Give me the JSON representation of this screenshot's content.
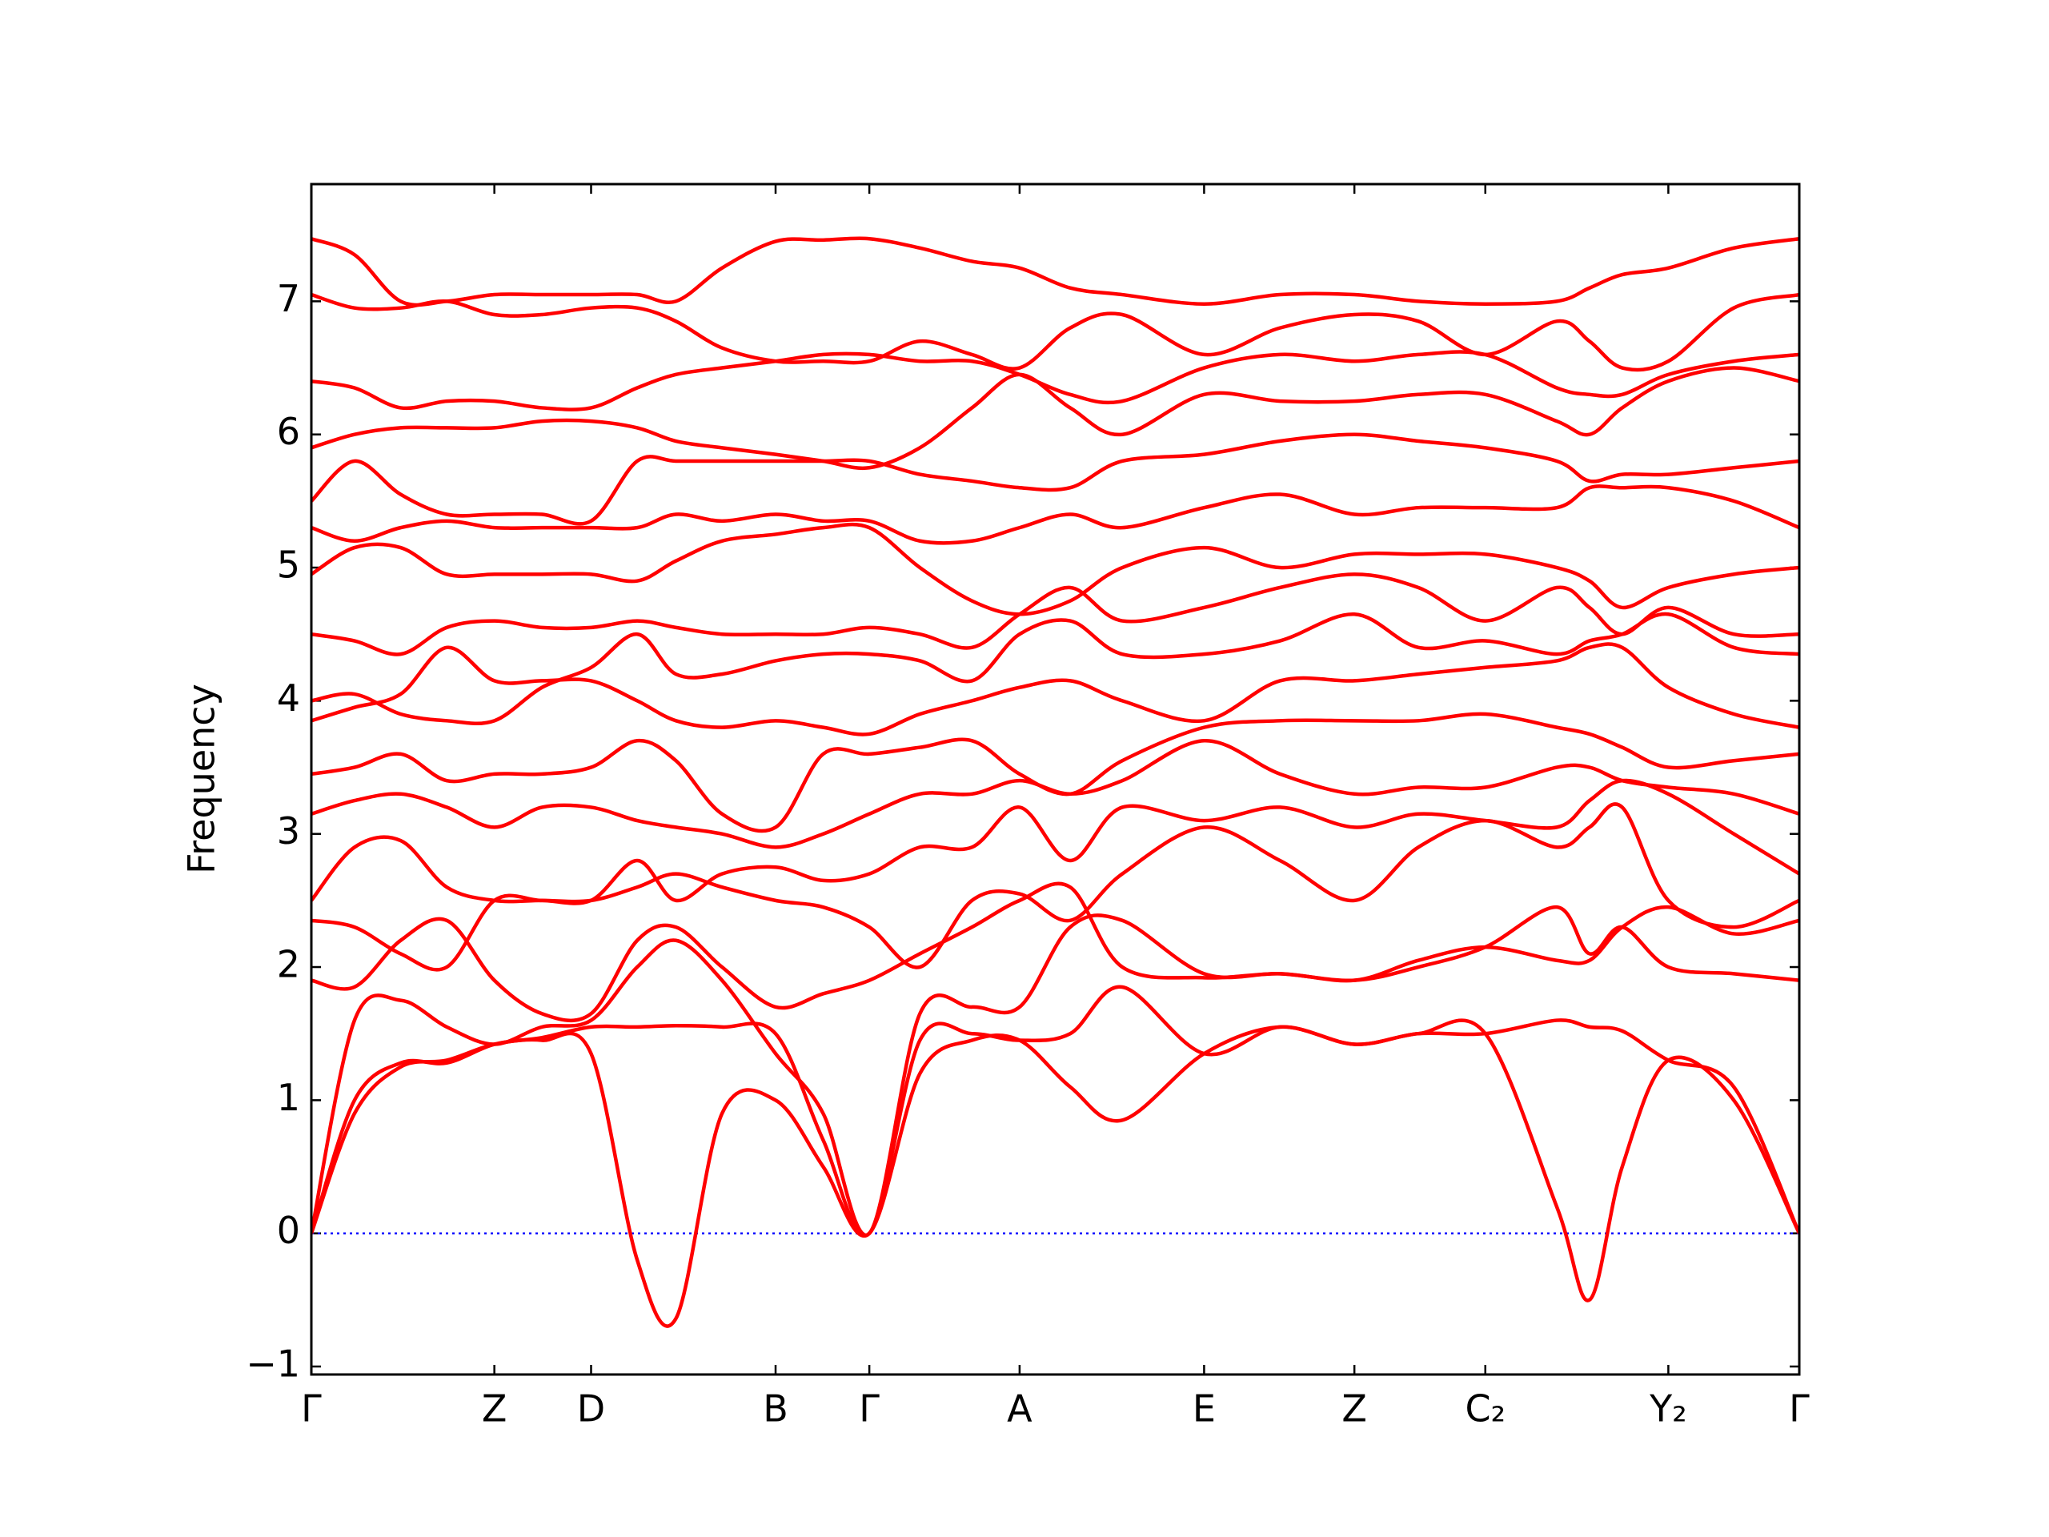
{
  "chart_data": {
    "type": "line",
    "ylabel": "Frequency",
    "color": "#ff0000",
    "hline": 0,
    "hline_color": "#0000ff",
    "xlim": [
      0,
      1
    ],
    "xticks": [
      {
        "value": 0,
        "label": "Γ"
      },
      {
        "value": 0.123,
        "label": "Z"
      },
      {
        "value": 0.188,
        "label": "D"
      },
      {
        "value": 0.312,
        "label": "B"
      },
      {
        "value": 0.375,
        "label": "Γ"
      },
      {
        "value": 0.476,
        "label": "A"
      },
      {
        "value": 0.6,
        "label": "E"
      },
      {
        "value": 0.701,
        "label": "Z"
      },
      {
        "value": 0.789,
        "label": "C₂"
      },
      {
        "value": 0.912,
        "label": "Y₂"
      },
      {
        "value": 1,
        "label": "Γ"
      }
    ],
    "ylim": [
      -1.06,
      7.88
    ],
    "yticks": [
      {
        "value": -1,
        "label": "−1"
      },
      0,
      1,
      2,
      3,
      4,
      5,
      6,
      7
    ],
    "x": [
      0,
      0.029,
      0.06,
      0.091,
      0.123,
      0.155,
      0.188,
      0.219,
      0.245,
      0.276,
      0.312,
      0.344,
      0.375,
      0.409,
      0.444,
      0.476,
      0.51,
      0.545,
      0.6,
      0.651,
      0.701,
      0.744,
      0.789,
      0.837,
      0.859,
      0.881,
      0.912,
      0.956,
      1
    ],
    "series": [
      {
        "values": [
          0,
          0.9,
          1.25,
          1.3,
          1.42,
          1.45,
          1.35,
          -0.2,
          -0.64,
          0.9,
          1.0,
          0.5,
          0,
          1.2,
          1.45,
          1.45,
          1.1,
          0.85,
          1.35,
          1.55,
          1.42,
          1.5,
          1.5,
          0.2,
          -0.5,
          0.5,
          1.3,
          1.0,
          0
        ]
      },
      {
        "values": [
          0,
          1.0,
          1.28,
          1.28,
          1.42,
          1.47,
          1.55,
          1.55,
          1.56,
          1.55,
          1.5,
          0.7,
          0,
          1.45,
          1.5,
          1.45,
          1.5,
          1.85,
          1.35,
          1.55,
          1.42,
          1.5,
          1.5,
          1.6,
          1.55,
          1.52,
          1.3,
          1.1,
          0
        ]
      },
      {
        "values": [
          0,
          1.6,
          1.75,
          1.55,
          1.42,
          1.55,
          1.6,
          2.0,
          2.2,
          1.9,
          1.35,
          0.9,
          0,
          1.65,
          1.7,
          1.7,
          2.3,
          2.35,
          1.95,
          1.95,
          1.9,
          2.0,
          2.15,
          2.45,
          2.1,
          2.3,
          2.0,
          1.95,
          1.9
        ]
      },
      {
        "values": [
          1.9,
          1.85,
          2.2,
          2.35,
          1.9,
          1.65,
          1.65,
          2.2,
          2.3,
          2.0,
          1.7,
          1.8,
          1.9,
          2.1,
          2.3,
          2.5,
          2.6,
          2.0,
          1.92,
          1.95,
          1.9,
          2.05,
          2.15,
          2.05,
          2.05,
          2.3,
          2.45,
          2.25,
          2.35
        ]
      },
      {
        "values": [
          2.35,
          2.3,
          2.1,
          2.0,
          2.5,
          2.5,
          2.5,
          2.6,
          2.7,
          2.6,
          2.5,
          2.45,
          2.3,
          2.0,
          2.5,
          2.55,
          2.35,
          2.7,
          3.05,
          2.8,
          2.5,
          2.9,
          3.1,
          2.9,
          3.05,
          3.2,
          2.5,
          2.3,
          2.5
        ]
      },
      {
        "values": [
          2.5,
          2.9,
          2.95,
          2.6,
          2.5,
          2.5,
          2.5,
          2.8,
          2.5,
          2.7,
          2.75,
          2.65,
          2.7,
          2.9,
          2.9,
          3.2,
          2.8,
          3.2,
          3.1,
          3.2,
          3.05,
          3.15,
          3.1,
          3.05,
          3.25,
          3.4,
          3.3,
          3.0,
          2.7
        ]
      },
      {
        "values": [
          3.15,
          3.25,
          3.3,
          3.2,
          3.05,
          3.2,
          3.2,
          3.1,
          3.05,
          3.0,
          2.9,
          3.0,
          3.15,
          3.3,
          3.3,
          3.4,
          3.3,
          3.4,
          3.7,
          3.45,
          3.3,
          3.35,
          3.35,
          3.5,
          3.5,
          3.4,
          3.35,
          3.3,
          3.15
        ]
      },
      {
        "values": [
          3.45,
          3.5,
          3.6,
          3.4,
          3.45,
          3.45,
          3.5,
          3.7,
          3.55,
          3.15,
          3.05,
          3.6,
          3.6,
          3.65,
          3.7,
          3.45,
          3.3,
          3.55,
          3.8,
          3.85,
          3.85,
          3.85,
          3.9,
          3.8,
          3.75,
          3.65,
          3.5,
          3.55,
          3.6
        ]
      },
      {
        "values": [
          3.85,
          3.95,
          4.05,
          4.4,
          4.15,
          4.15,
          4.15,
          4.0,
          3.85,
          3.8,
          3.85,
          3.8,
          3.75,
          3.9,
          4.0,
          4.1,
          4.15,
          4.0,
          3.85,
          4.15,
          4.15,
          4.2,
          4.25,
          4.3,
          4.4,
          4.4,
          4.1,
          3.9,
          3.8
        ]
      },
      {
        "values": [
          4.0,
          4.05,
          3.9,
          3.85,
          3.85,
          4.1,
          4.25,
          4.5,
          4.2,
          4.2,
          4.3,
          4.35,
          4.35,
          4.3,
          4.15,
          4.5,
          4.6,
          4.35,
          4.35,
          4.45,
          4.65,
          4.4,
          4.45,
          4.35,
          4.45,
          4.5,
          4.65,
          4.4,
          4.35
        ]
      },
      {
        "values": [
          4.5,
          4.45,
          4.35,
          4.55,
          4.6,
          4.55,
          4.55,
          4.6,
          4.55,
          4.5,
          4.5,
          4.5,
          4.55,
          4.5,
          4.4,
          4.65,
          4.85,
          4.6,
          4.7,
          4.85,
          4.95,
          4.85,
          4.6,
          4.85,
          4.7,
          4.5,
          4.7,
          4.5,
          4.5
        ]
      },
      {
        "values": [
          4.95,
          5.15,
          5.15,
          4.95,
          4.95,
          4.95,
          4.95,
          4.9,
          5.05,
          5.2,
          5.25,
          5.3,
          5.3,
          5.0,
          4.75,
          4.65,
          4.75,
          5.0,
          5.15,
          5.0,
          5.1,
          5.1,
          5.1,
          5.0,
          4.9,
          4.7,
          4.85,
          4.95,
          5.0
        ]
      },
      {
        "values": [
          5.3,
          5.2,
          5.3,
          5.35,
          5.3,
          5.3,
          5.3,
          5.3,
          5.4,
          5.35,
          5.4,
          5.35,
          5.35,
          5.2,
          5.2,
          5.3,
          5.4,
          5.3,
          5.45,
          5.55,
          5.4,
          5.45,
          5.45,
          5.45,
          5.6,
          5.6,
          5.6,
          5.5,
          5.3
        ]
      },
      {
        "values": [
          5.5,
          5.8,
          5.55,
          5.4,
          5.4,
          5.4,
          5.35,
          5.8,
          5.8,
          5.8,
          5.8,
          5.8,
          5.8,
          5.7,
          5.65,
          5.6,
          5.6,
          5.8,
          5.85,
          5.95,
          6.0,
          5.95,
          5.9,
          5.8,
          5.65,
          5.7,
          5.7,
          5.75,
          5.8
        ]
      },
      {
        "values": [
          5.9,
          6.0,
          6.05,
          6.05,
          6.05,
          6.1,
          6.1,
          6.05,
          5.95,
          5.9,
          5.85,
          5.8,
          5.75,
          5.9,
          6.2,
          6.45,
          6.2,
          6.0,
          6.3,
          6.25,
          6.25,
          6.3,
          6.3,
          6.1,
          6.0,
          6.2,
          6.4,
          6.5,
          6.4
        ]
      },
      {
        "values": [
          6.4,
          6.35,
          6.2,
          6.25,
          6.25,
          6.2,
          6.2,
          6.35,
          6.45,
          6.5,
          6.55,
          6.6,
          6.6,
          6.55,
          6.55,
          6.45,
          6.3,
          6.25,
          6.5,
          6.6,
          6.55,
          6.6,
          6.6,
          6.35,
          6.3,
          6.3,
          6.45,
          6.55,
          6.6
        ]
      },
      {
        "values": [
          7.05,
          6.95,
          6.95,
          7.0,
          6.9,
          6.9,
          6.95,
          6.95,
          6.85,
          6.65,
          6.55,
          6.55,
          6.55,
          6.7,
          6.6,
          6.5,
          6.8,
          6.9,
          6.6,
          6.8,
          6.9,
          6.85,
          6.6,
          6.85,
          6.7,
          6.5,
          6.55,
          6.95,
          7.05
        ]
      },
      {
        "values": [
          7.47,
          7.35,
          7.0,
          7.0,
          7.05,
          7.05,
          7.05,
          7.05,
          7.0,
          7.25,
          7.45,
          7.46,
          7.47,
          7.4,
          7.3,
          7.25,
          7.1,
          7.05,
          6.98,
          7.05,
          7.05,
          7.0,
          6.98,
          7.0,
          7.1,
          7.2,
          7.25,
          7.4,
          7.47
        ]
      }
    ]
  }
}
